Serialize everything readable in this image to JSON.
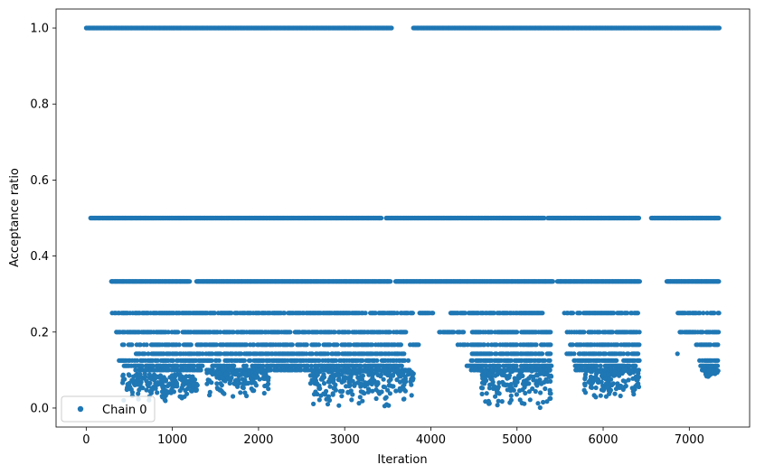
{
  "chart_data": {
    "type": "scatter",
    "title": "",
    "xlabel": "Iteration",
    "ylabel": "Acceptance ratio",
    "xlim": [
      -350,
      7700
    ],
    "ylim": [
      -0.05,
      1.05
    ],
    "xticks": [
      0,
      1000,
      2000,
      3000,
      4000,
      5000,
      6000,
      7000
    ],
    "yticks": [
      0.0,
      0.2,
      0.4,
      0.6,
      0.8,
      1.0
    ],
    "ytick_labels": [
      "0.0",
      "0.2",
      "0.4",
      "0.6",
      "0.8",
      "1.0"
    ],
    "grid": false,
    "legend": {
      "placement": "lower-left",
      "entries": [
        "Chain 0"
      ]
    },
    "series": [
      {
        "name": "Chain 0",
        "color": "#1f77b4",
        "marker": "circle",
        "description": "Iteration 0 to ~7350; acceptance ratio takes discrete levels 1, 1/2, 1/3, 1/4, 1/5, 1/6, 1/7, 1/8 and lower; low values cluster in bursts",
        "levels": [
          {
            "y": 1.0,
            "ranges": [
              [
                0,
                3550
              ],
              [
                3800,
                7350
              ]
            ]
          },
          {
            "y": 0.5,
            "ranges": [
              [
                50,
                3430
              ],
              [
                3480,
                5320
              ],
              [
                5360,
                6420
              ],
              [
                6560,
                7350
              ]
            ]
          },
          {
            "y": 0.3333,
            "ranges": [
              [
                290,
                1200
              ],
              [
                1280,
                3530
              ],
              [
                3590,
                5420
              ],
              [
                5470,
                6430
              ],
              [
                6740,
                7350
              ]
            ]
          },
          {
            "y": 0.25,
            "ranges": [
              [
                300,
                3250
              ],
              [
                3300,
                3800
              ],
              [
                3870,
                4030
              ],
              [
                4230,
                5300
              ],
              [
                5550,
                6420
              ],
              [
                6870,
                7350
              ]
            ]
          },
          {
            "y": 0.2,
            "ranges": [
              [
                350,
                3750
              ],
              [
                4100,
                4400
              ],
              [
                4480,
                5400
              ],
              [
                5580,
                6420
              ],
              [
                6890,
                7350
              ]
            ]
          },
          {
            "y": 0.1667,
            "ranges": [
              [
                420,
                3680
              ],
              [
                3760,
                3860
              ],
              [
                4300,
                5400
              ],
              [
                5620,
                6420
              ],
              [
                7080,
                7340
              ]
            ]
          },
          {
            "y": 0.1429,
            "ranges": [
              [
                580,
                3700
              ],
              [
                3800,
                3820
              ],
              [
                4480,
                5400
              ],
              [
                5580,
                6420
              ],
              [
                6860,
                6880
              ]
            ]
          },
          {
            "y": 0.125,
            "ranges": [
              [
                380,
                3760
              ],
              [
                4470,
                5390
              ],
              [
                5650,
                6420
              ],
              [
                7120,
                7340
              ]
            ]
          },
          {
            "y": 0.1111,
            "ranges": [
              [
                440,
                1390
              ],
              [
                1450,
                3670
              ],
              [
                4420,
                5400
              ],
              [
                5660,
                6400
              ],
              [
                7130,
                7330
              ]
            ]
          },
          {
            "y": 0.1,
            "ranges": [
              [
                560,
                3760
              ],
              [
                4470,
                5390
              ],
              [
                5670,
                6420
              ],
              [
                7150,
                7320
              ]
            ]
          }
        ],
        "bursts": [
          {
            "x": [
              420,
              1300
            ],
            "y": [
              0.01,
              0.09
            ]
          },
          {
            "x": [
              1400,
              2120
            ],
            "y": [
              0.02,
              0.1
            ]
          },
          {
            "x": [
              2600,
              3800
            ],
            "y": [
              0.0,
              0.1
            ]
          },
          {
            "x": [
              4580,
              5400
            ],
            "y": [
              0.0,
              0.1
            ]
          },
          {
            "x": [
              5780,
              6420
            ],
            "y": [
              0.02,
              0.1
            ]
          },
          {
            "x": [
              7180,
              7340
            ],
            "y": [
              0.08,
              0.1
            ]
          }
        ]
      }
    ]
  }
}
